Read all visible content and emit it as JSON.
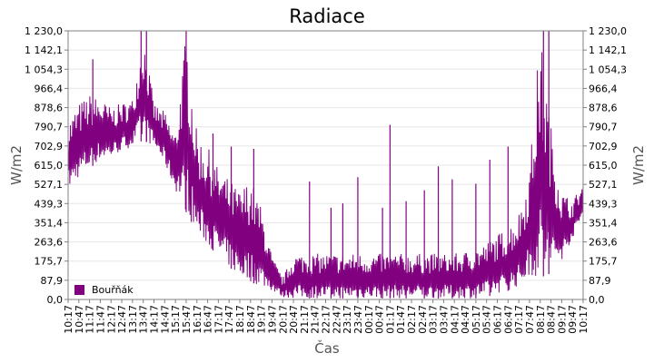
{
  "chart_data": {
    "type": "line",
    "title": "Radiace",
    "xlabel": "Čas",
    "ylabel": "W/m2",
    "ylabel_right": "W/m2",
    "ylim": [
      0,
      1230
    ],
    "y_ticks": [
      "0,0",
      "87,9",
      "175,7",
      "263,6",
      "351,4",
      "439,3",
      "527,1",
      "615,0",
      "702,9",
      "790,7",
      "878,6",
      "966,4",
      "1 054,3",
      "1 142,1",
      "1 230,0"
    ],
    "x_ticks": [
      "10:17",
      "10:47",
      "11:17",
      "11:47",
      "12:17",
      "12:47",
      "13:17",
      "13:47",
      "14:17",
      "14:47",
      "15:17",
      "15:47",
      "16:17",
      "16:47",
      "17:17",
      "17:47",
      "18:17",
      "18:47",
      "19:17",
      "19:47",
      "20:17",
      "20:47",
      "21:17",
      "21:47",
      "22:17",
      "22:47",
      "23:17",
      "23:47",
      "00:17",
      "00:47",
      "01:17",
      "01:47",
      "02:17",
      "02:47",
      "03:17",
      "03:47",
      "04:17",
      "04:47",
      "05:17",
      "05:47",
      "06:17",
      "06:47",
      "07:17",
      "07:47",
      "08:17",
      "08:47",
      "09:17",
      "09:47",
      "10:17"
    ],
    "grid": true,
    "legend_position": "bottom-left",
    "series": [
      {
        "name": "Bouřňák",
        "color": "#800080",
        "envelope": [
          {
            "x": 0,
            "low": 500,
            "high": 820
          },
          {
            "x": 1,
            "low": 560,
            "high": 900
          },
          {
            "x": 2,
            "low": 600,
            "high": 940
          },
          {
            "x": 3,
            "low": 640,
            "high": 920
          },
          {
            "x": 4,
            "low": 650,
            "high": 880
          },
          {
            "x": 5,
            "low": 680,
            "high": 900
          },
          {
            "x": 6,
            "low": 700,
            "high": 920
          },
          {
            "x": 7,
            "low": 730,
            "high": 1230
          },
          {
            "x": 8,
            "low": 700,
            "high": 900
          },
          {
            "x": 9,
            "low": 620,
            "high": 860
          },
          {
            "x": 10,
            "low": 500,
            "high": 760
          },
          {
            "x": 11,
            "low": 400,
            "high": 1230
          },
          {
            "x": 12,
            "low": 300,
            "high": 760
          },
          {
            "x": 13,
            "low": 250,
            "high": 700
          },
          {
            "x": 14,
            "low": 200,
            "high": 600
          },
          {
            "x": 15,
            "low": 150,
            "high": 550
          },
          {
            "x": 16,
            "low": 100,
            "high": 500
          },
          {
            "x": 17,
            "low": 80,
            "high": 560
          },
          {
            "x": 18,
            "low": 60,
            "high": 420
          },
          {
            "x": 19,
            "low": 40,
            "high": 200
          },
          {
            "x": 20,
            "low": 10,
            "high": 100
          },
          {
            "x": 21,
            "low": 5,
            "high": 210
          },
          {
            "x": 22,
            "low": 5,
            "high": 210
          },
          {
            "x": 23,
            "low": 5,
            "high": 210
          },
          {
            "x": 24,
            "low": 5,
            "high": 210
          },
          {
            "x": 25,
            "low": 5,
            "high": 210
          },
          {
            "x": 26,
            "low": 5,
            "high": 210
          },
          {
            "x": 27,
            "low": 5,
            "high": 210
          },
          {
            "x": 28,
            "low": 5,
            "high": 210
          },
          {
            "x": 29,
            "low": 5,
            "high": 210
          },
          {
            "x": 30,
            "low": 5,
            "high": 210
          },
          {
            "x": 31,
            "low": 5,
            "high": 210
          },
          {
            "x": 32,
            "low": 5,
            "high": 210
          },
          {
            "x": 33,
            "low": 5,
            "high": 210
          },
          {
            "x": 34,
            "low": 5,
            "high": 210
          },
          {
            "x": 35,
            "low": 5,
            "high": 210
          },
          {
            "x": 36,
            "low": 5,
            "high": 210
          },
          {
            "x": 37,
            "low": 5,
            "high": 220
          },
          {
            "x": 38,
            "low": 5,
            "high": 240
          },
          {
            "x": 39,
            "low": 10,
            "high": 260
          },
          {
            "x": 40,
            "low": 30,
            "high": 300
          },
          {
            "x": 41,
            "low": 40,
            "high": 330
          },
          {
            "x": 42,
            "low": 60,
            "high": 400
          },
          {
            "x": 43,
            "low": 100,
            "high": 600
          },
          {
            "x": 44,
            "low": 100,
            "high": 1230
          },
          {
            "x": 45,
            "low": 120,
            "high": 800
          },
          {
            "x": 46,
            "low": 180,
            "high": 500
          },
          {
            "x": 47,
            "low": 280,
            "high": 450
          },
          {
            "x": 48,
            "low": 380,
            "high": 540
          }
        ],
        "spikes": [
          {
            "x": 2.3,
            "y": 1100
          },
          {
            "x": 6.8,
            "y": 1230
          },
          {
            "x": 7.3,
            "y": 1230
          },
          {
            "x": 11.0,
            "y": 1230
          },
          {
            "x": 13.5,
            "y": 760
          },
          {
            "x": 15.2,
            "y": 700
          },
          {
            "x": 17.3,
            "y": 690
          },
          {
            "x": 22.5,
            "y": 540
          },
          {
            "x": 24.5,
            "y": 420
          },
          {
            "x": 25.6,
            "y": 440
          },
          {
            "x": 27.0,
            "y": 560
          },
          {
            "x": 29.3,
            "y": 420
          },
          {
            "x": 30.0,
            "y": 800
          },
          {
            "x": 31.5,
            "y": 450
          },
          {
            "x": 33.2,
            "y": 500
          },
          {
            "x": 34.5,
            "y": 610
          },
          {
            "x": 35.8,
            "y": 550
          },
          {
            "x": 38.0,
            "y": 530
          },
          {
            "x": 39.3,
            "y": 640
          },
          {
            "x": 41.0,
            "y": 700
          },
          {
            "x": 44.3,
            "y": 1230
          },
          {
            "x": 44.8,
            "y": 1230
          }
        ]
      }
    ]
  }
}
